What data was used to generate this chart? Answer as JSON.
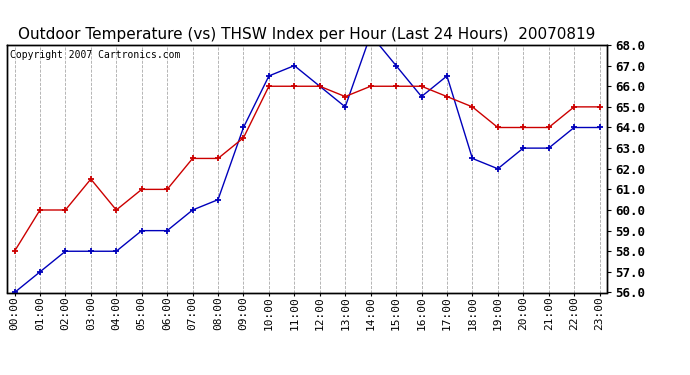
{
  "title": "Outdoor Temperature (vs) THSW Index per Hour (Last 24 Hours)  20070819",
  "copyright": "Copyright 2007 Cartronics.com",
  "hours": [
    "00:00",
    "01:00",
    "02:00",
    "03:00",
    "04:00",
    "05:00",
    "06:00",
    "07:00",
    "08:00",
    "09:00",
    "10:00",
    "11:00",
    "12:00",
    "13:00",
    "14:00",
    "15:00",
    "16:00",
    "17:00",
    "18:00",
    "19:00",
    "20:00",
    "21:00",
    "22:00",
    "23:00"
  ],
  "outdoor_temp": [
    56.0,
    57.0,
    58.0,
    58.0,
    58.0,
    59.0,
    59.0,
    60.0,
    60.5,
    64.0,
    66.5,
    67.0,
    66.0,
    65.0,
    68.5,
    67.0,
    65.5,
    66.5,
    62.5,
    62.0,
    63.0,
    63.0,
    64.0,
    64.0
  ],
  "thsw_index": [
    58.0,
    60.0,
    60.0,
    61.5,
    60.0,
    61.0,
    61.0,
    62.5,
    62.5,
    63.5,
    66.0,
    66.0,
    66.0,
    65.5,
    66.0,
    66.0,
    66.0,
    65.5,
    65.0,
    64.0,
    64.0,
    64.0,
    65.0,
    65.0
  ],
  "ylim": [
    56.0,
    68.0
  ],
  "yticks": [
    56.0,
    57.0,
    58.0,
    59.0,
    60.0,
    61.0,
    62.0,
    63.0,
    64.0,
    65.0,
    66.0,
    67.0,
    68.0
  ],
  "outdoor_color": "#0000bb",
  "thsw_color": "#cc0000",
  "bg_color": "#ffffff",
  "plot_bg_color": "#ffffff",
  "grid_color": "#aaaaaa",
  "title_fontsize": 11,
  "copyright_fontsize": 7,
  "tick_fontsize": 8,
  "ytick_fontsize": 9
}
